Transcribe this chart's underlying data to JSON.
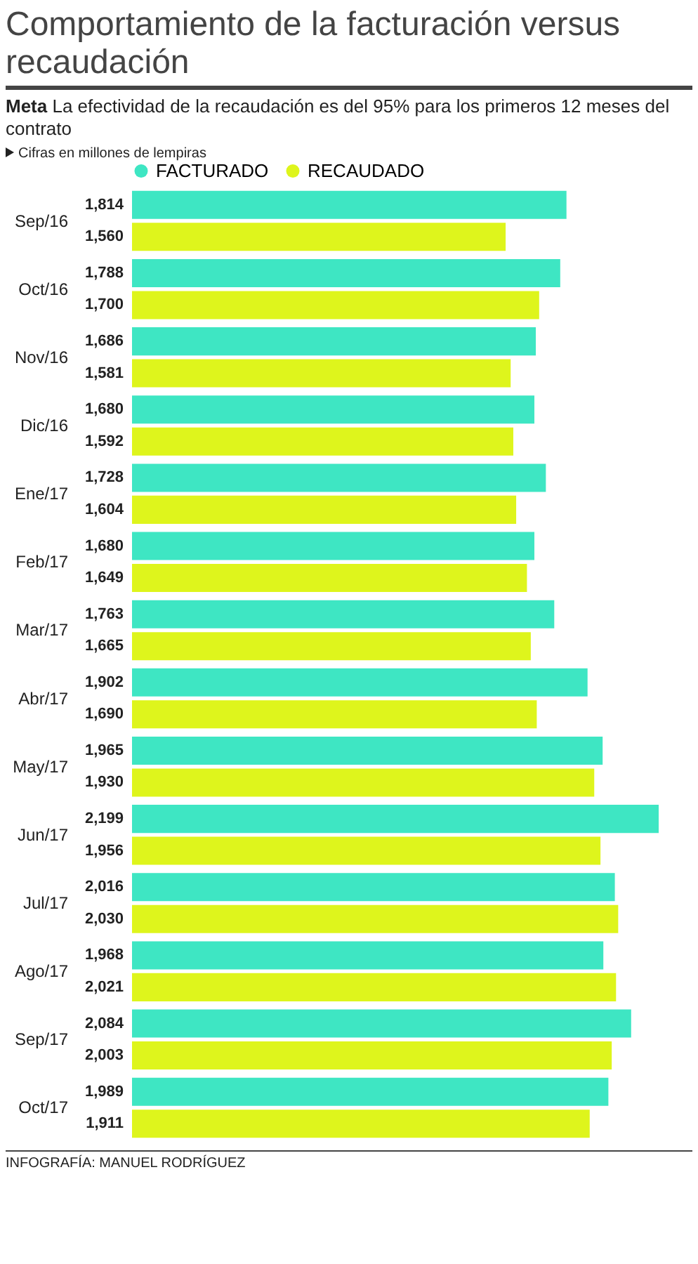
{
  "chart_data": {
    "type": "bar",
    "orientation": "horizontal",
    "title": "Comportamiento de la facturación versus recaudación",
    "subtitle": "Meta La efectividad de la recaudación es del 95% para los primeros 12 meses del contrato",
    "annotations": [
      "Cifras en millones de lempiras",
      "INFOGRAFÍA: MANUEL RODRÍGUEZ"
    ],
    "categories": [
      "Sep/16",
      "Oct/16",
      "Nov/16",
      "Dic/16",
      "Ene/17",
      "Feb/17",
      "Mar/17",
      "Abr/17",
      "May/17",
      "Jun/17",
      "Jul/17",
      "Ago/17",
      "Sep/17",
      "Oct/17"
    ],
    "series": [
      {
        "name": "FACTURADO",
        "color": "#3ee6c3",
        "values": [
          1814,
          1788,
          1686,
          1680,
          1728,
          1680,
          1763,
          1902,
          1965,
          2199,
          2016,
          1968,
          2084,
          1989
        ],
        "value_labels": [
          "1,814",
          "1,788",
          "1,686",
          "1,680",
          "1,728",
          "1,680",
          "1,763",
          "1,902",
          "1,965",
          "2,199",
          "2,016",
          "1,968",
          "2,084",
          "1,989"
        ]
      },
      {
        "name": "RECAUDADO",
        "color": "#def51c",
        "values": [
          1560,
          1700,
          1581,
          1592,
          1604,
          1649,
          1665,
          1690,
          1930,
          1956,
          2030,
          2021,
          2003,
          1911
        ],
        "value_labels": [
          "1,560",
          "1,700",
          "1,581",
          "1,592",
          "1,604",
          "1,649",
          "1,665",
          "1,690",
          "1,930",
          "1,956",
          "2,030",
          "2,021",
          "2,003",
          "1,911"
        ]
      }
    ],
    "legend": "top left",
    "grid": false
  }
}
